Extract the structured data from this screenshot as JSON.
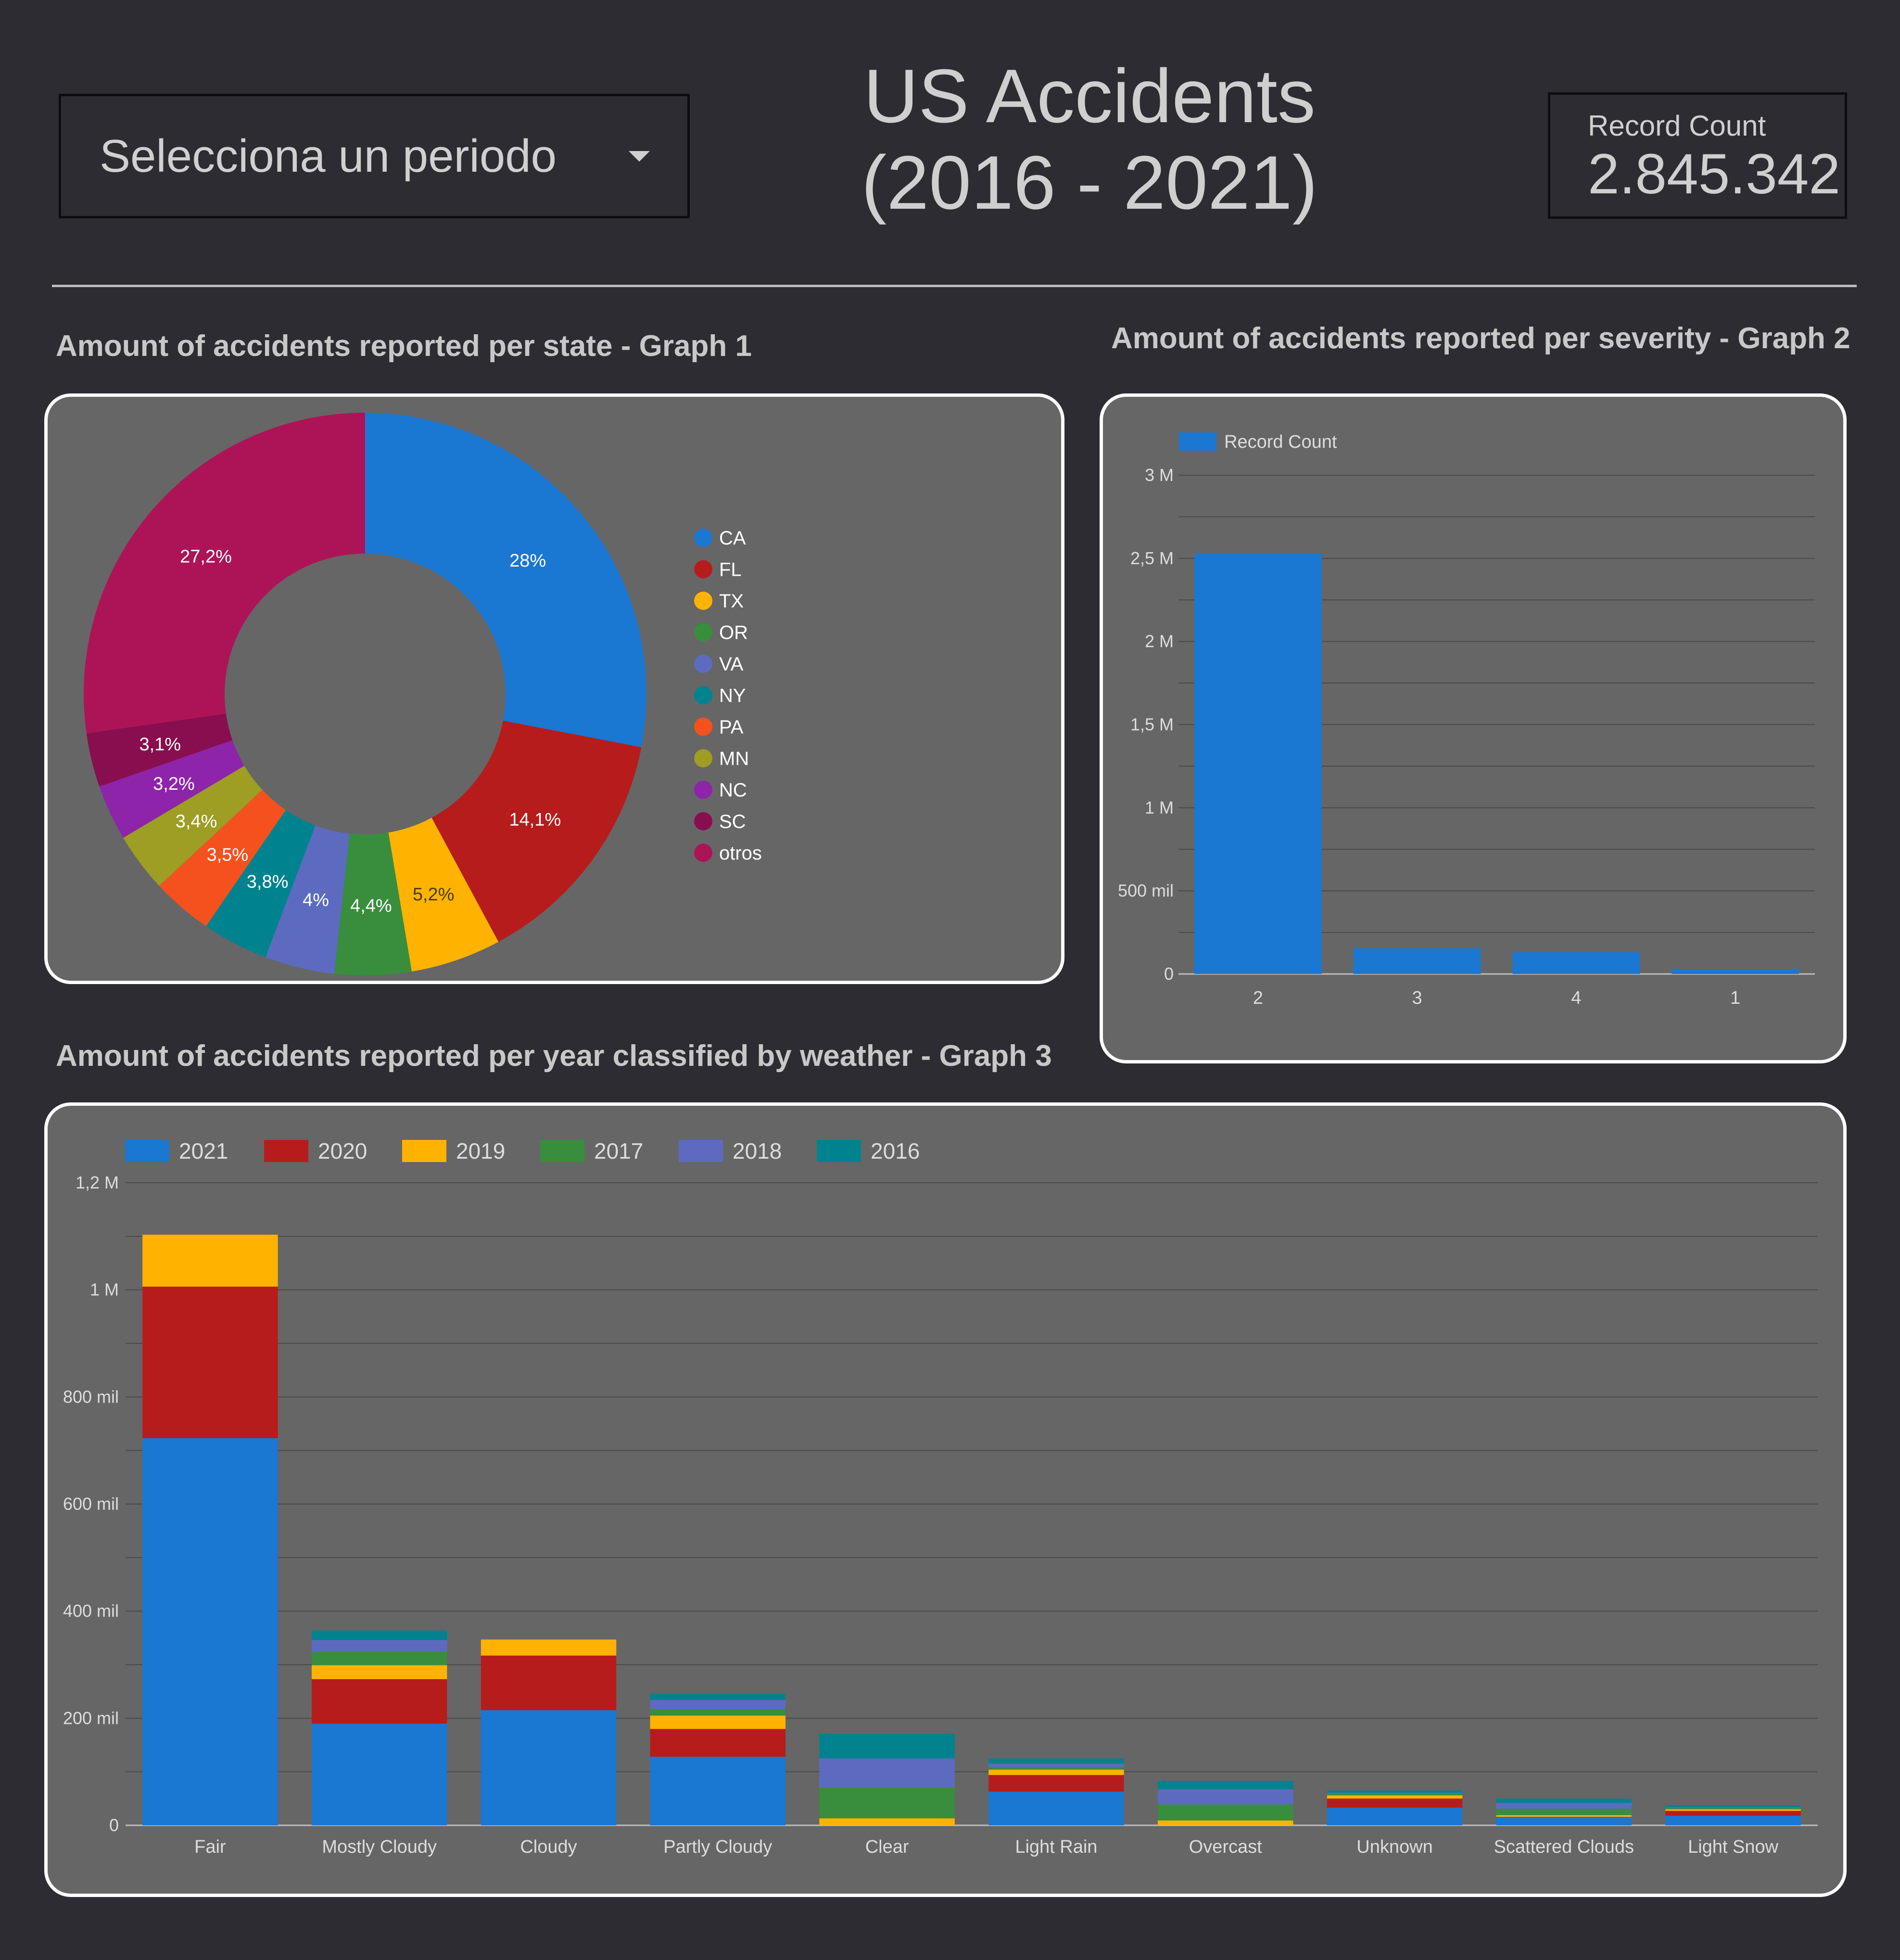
{
  "header": {
    "period_select": {
      "label": "Selecciona un periodo"
    },
    "title_line1": "US Accidents",
    "title_line2": "(2016 - 2021)",
    "record_count": {
      "label": "Record Count",
      "value": "2.845.342"
    }
  },
  "sections": {
    "graph1_title": "Amount of accidents reported per state - Graph 1",
    "graph2_title": "Amount of accidents reported per severity - Graph 2",
    "graph3_title": "Amount of accidents reported per year classified by weather - Graph 3"
  },
  "colors": {
    "background": "#2d2c32",
    "panel": "#666666",
    "blue": "#1a77d2",
    "red": "#b71c1c",
    "yellow": "#ffb300",
    "green": "#388e3c",
    "indigo": "#5c6bc0",
    "teal": "#00838f",
    "orange": "#f4511e",
    "olive": "#9e9d24",
    "purple": "#8e24aa",
    "maroon": "#880e4f",
    "magenta": "#ad1457"
  },
  "chart_data": [
    {
      "type": "pie",
      "donut": true,
      "categories": [
        "CA",
        "FL",
        "TX",
        "OR",
        "VA",
        "NY",
        "PA",
        "MN",
        "NC",
        "SC",
        "otros"
      ],
      "values": [
        28,
        14.1,
        5.2,
        4.4,
        4,
        3.8,
        3.5,
        3.4,
        3.2,
        3.1,
        27.2
      ],
      "labels": [
        "28%",
        "14,1%",
        "5,2%",
        "4,4%",
        "4%",
        "3,8%",
        "3,5%",
        "3,4%",
        "3,2%",
        "3,1%",
        "27,2%"
      ],
      "colors": [
        "#1a77d2",
        "#b71c1c",
        "#ffb300",
        "#388e3c",
        "#5c6bc0",
        "#00838f",
        "#f4511e",
        "#9e9d24",
        "#8e24aa",
        "#880e4f",
        "#ad1457"
      ],
      "legend": "right"
    },
    {
      "type": "bar",
      "categories": [
        "2",
        "3",
        "4",
        "1"
      ],
      "series": [
        {
          "name": "Record Count",
          "values": [
            2530000,
            155000,
            131000,
            26000
          ]
        }
      ],
      "ylim": [
        0,
        3000000
      ],
      "yticks": [
        0,
        500000,
        1000000,
        1500000,
        2000000,
        2500000,
        3000000
      ],
      "ytick_labels": [
        "0",
        "500 mil",
        "1 M",
        "1,5 M",
        "2 M",
        "2,5 M",
        "3 M"
      ],
      "grid": true,
      "legend": "top-left",
      "color": "#1a77d2"
    },
    {
      "type": "bar",
      "stacked": true,
      "categories": [
        "Fair",
        "Mostly Cloudy",
        "Cloudy",
        "Partly Cloudy",
        "Clear",
        "Light Rain",
        "Overcast",
        "Unknown",
        "Scattered Clouds",
        "Light Snow"
      ],
      "series": [
        {
          "name": "2021",
          "values": [
            723000,
            190000,
            215000,
            128000,
            0,
            63000,
            0,
            33000,
            16000,
            18000
          ]
        },
        {
          "name": "2020",
          "values": [
            283000,
            83000,
            102000,
            52000,
            0,
            31000,
            0,
            17000,
            0,
            9000
          ]
        },
        {
          "name": "2019",
          "values": [
            97000,
            26000,
            30000,
            25000,
            13000,
            10000,
            9000,
            6000,
            3000,
            3000
          ]
        },
        {
          "name": "2017",
          "values": [
            0,
            25000,
            0,
            12000,
            57000,
            5000,
            30000,
            3000,
            12000,
            2000
          ]
        },
        {
          "name": "2018",
          "values": [
            0,
            22000,
            0,
            17000,
            55000,
            6000,
            28000,
            2000,
            11000,
            2000
          ]
        },
        {
          "name": "2016",
          "values": [
            0,
            18000,
            0,
            12000,
            46000,
            10000,
            16000,
            4000,
            8000,
            3000
          ]
        }
      ],
      "ylim": [
        0,
        1200000
      ],
      "yticks": [
        0,
        200000,
        400000,
        600000,
        800000,
        1000000,
        1200000
      ],
      "ytick_labels": [
        "0",
        "200 mil",
        "400 mil",
        "600 mil",
        "800 mil",
        "1 M",
        "1,2 M"
      ],
      "grid": true,
      "legend": "top-left",
      "colors": [
        "#1a77d2",
        "#b71c1c",
        "#ffb300",
        "#388e3c",
        "#5c6bc0",
        "#00838f"
      ]
    }
  ]
}
